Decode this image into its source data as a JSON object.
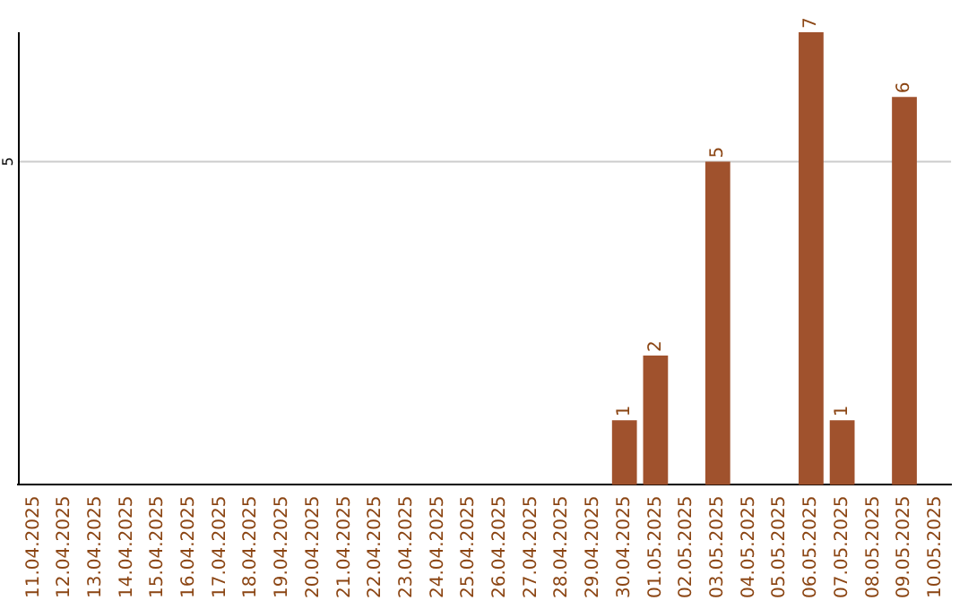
{
  "chart_data": {
    "type": "bar",
    "categories": [
      "11.04.2025",
      "12.04.2025",
      "13.04.2025",
      "14.04.2025",
      "15.04.2025",
      "16.04.2025",
      "17.04.2025",
      "18.04.2025",
      "19.04.2025",
      "20.04.2025",
      "21.04.2025",
      "22.04.2025",
      "23.04.2025",
      "24.04.2025",
      "25.04.2025",
      "26.04.2025",
      "27.04.2025",
      "28.04.2025",
      "29.04.2025",
      "30.04.2025",
      "01.05.2025",
      "02.05.2025",
      "03.05.2025",
      "04.05.2025",
      "05.05.2025",
      "06.05.2025",
      "07.05.2025",
      "08.05.2025",
      "09.05.2025",
      "10.05.2025"
    ],
    "values": [
      null,
      null,
      null,
      null,
      null,
      null,
      null,
      null,
      null,
      null,
      null,
      null,
      null,
      null,
      null,
      null,
      null,
      null,
      null,
      1,
      2,
      null,
      5,
      null,
      null,
      7,
      1,
      null,
      6,
      null
    ],
    "value_labels": [
      null,
      null,
      null,
      null,
      null,
      null,
      null,
      null,
      null,
      null,
      null,
      null,
      null,
      null,
      null,
      null,
      null,
      null,
      null,
      "1",
      "2",
      null,
      "5",
      null,
      null,
      "7",
      "1",
      null,
      "6",
      null
    ],
    "color": "#a0522d",
    "ylim": [
      0,
      7
    ],
    "ref_lines": [
      {
        "axis": "y",
        "value": 5,
        "label": "5",
        "color": "#cccccc"
      }
    ],
    "legend": false
  }
}
